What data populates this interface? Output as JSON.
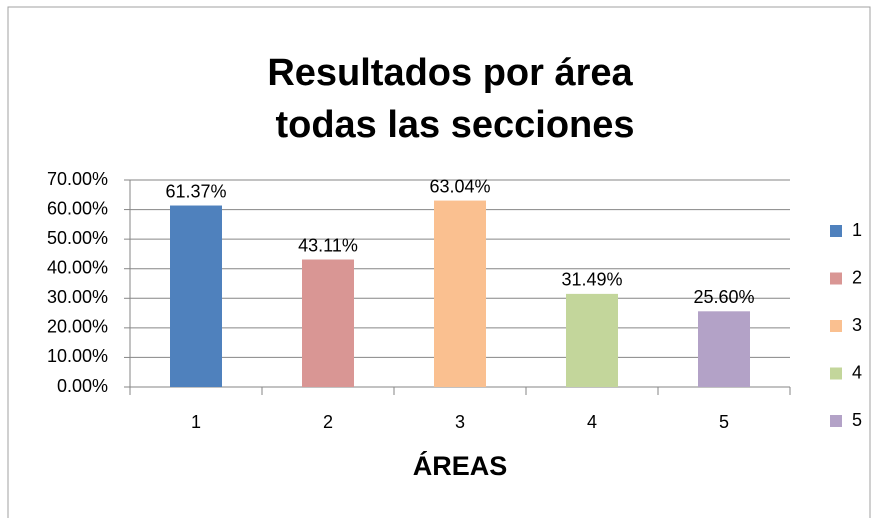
{
  "chart_data": {
    "type": "bar",
    "title": [
      "Resultados por área",
      "todas las secciones"
    ],
    "x_label": "ÁREAS",
    "categories": [
      "1",
      "2",
      "3",
      "4",
      "5"
    ],
    "values": [
      61.37,
      43.11,
      63.04,
      31.49,
      25.6
    ],
    "value_labels": [
      "61.37%",
      "43.11%",
      "63.04%",
      "31.49%",
      "25.60%"
    ],
    "colors": [
      "#4f81bd",
      "#d99694",
      "#fac090",
      "#c3d69b",
      "#b3a2c7"
    ],
    "ylim": [
      0,
      70
    ],
    "yticks": [
      {
        "value": 0,
        "label": "0.00%"
      },
      {
        "value": 10,
        "label": "10.00%"
      },
      {
        "value": 20,
        "label": "20.00%"
      },
      {
        "value": 30,
        "label": "30.00%"
      },
      {
        "value": 40,
        "label": "40.00%"
      },
      {
        "value": 50,
        "label": "50.00%"
      },
      {
        "value": 60,
        "label": "60.00%"
      },
      {
        "value": 70,
        "label": "70.00%"
      }
    ],
    "grid": true,
    "legend": "right"
  }
}
